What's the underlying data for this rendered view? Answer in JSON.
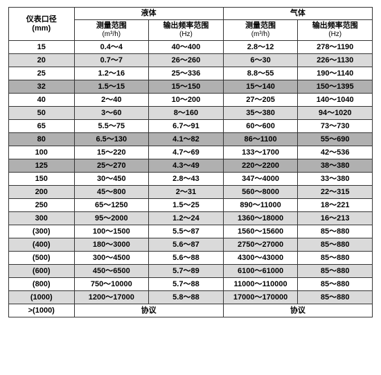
{
  "header": {
    "col0_l1": "仪表口径",
    "col0_l2": "(mm)",
    "grp1": "液体",
    "grp2": "气体",
    "sub1_l1": "测量范围",
    "sub1_l2": "(m³/h)",
    "sub2_l1": "输出频率范围",
    "sub2_l2": "(Hz)",
    "sub3_l1": "测量范围",
    "sub3_l2": "(m³/h)",
    "sub4_l1": "输出频率范围",
    "sub4_l2": "(Hz)"
  },
  "rows": [
    {
      "shade": "white",
      "c0": "15",
      "c1": "0.4～4",
      "c2": "40～400",
      "c3": "2.8～12",
      "c4": "278～1190"
    },
    {
      "shade": "light",
      "c0": "20",
      "c1": "0.7～7",
      "c2": "26～260",
      "c3": "6～30",
      "c4": "226～1130"
    },
    {
      "shade": "white",
      "c0": "25",
      "c1": "1.2～16",
      "c2": "25～336",
      "c3": "8.8～55",
      "c4": "190～1140"
    },
    {
      "shade": "dark",
      "c0": "32",
      "c1": "1.5～15",
      "c2": "15～150",
      "c3": "15～140",
      "c4": "150～1395"
    },
    {
      "shade": "white",
      "c0": "40",
      "c1": "2～40",
      "c2": "10～200",
      "c3": "27～205",
      "c4": "140～1040"
    },
    {
      "shade": "light",
      "c0": "50",
      "c1": "3～60",
      "c2": "8～160",
      "c3": "35～380",
      "c4": "94～1020"
    },
    {
      "shade": "white",
      "c0": "65",
      "c1": "5.5～75",
      "c2": "6.7～91",
      "c3": "60～600",
      "c4": "73～730"
    },
    {
      "shade": "dark",
      "c0": "80",
      "c1": "6.5～130",
      "c2": "4.1～82",
      "c3": "86～1100",
      "c4": "55～690"
    },
    {
      "shade": "white",
      "c0": "100",
      "c1": "15～220",
      "c2": "4.7～69",
      "c3": "133～1700",
      "c4": "42～536"
    },
    {
      "shade": "dark",
      "c0": "125",
      "c1": "25～270",
      "c2": "4.3～49",
      "c3": "220～2200",
      "c4": "38～380"
    },
    {
      "shade": "white",
      "c0": "150",
      "c1": "30～450",
      "c2": "2.8～43",
      "c3": "347～4000",
      "c4": "33～380"
    },
    {
      "shade": "light",
      "c0": "200",
      "c1": "45～800",
      "c2": "2～31",
      "c3": "560～8000",
      "c4": "22～315"
    },
    {
      "shade": "white",
      "c0": "250",
      "c1": "65～1250",
      "c2": "1.5～25",
      "c3": "890～11000",
      "c4": "18～221"
    },
    {
      "shade": "light",
      "c0": "300",
      "c1": "95～2000",
      "c2": "1.2～24",
      "c3": "1360～18000",
      "c4": "16～213"
    },
    {
      "shade": "white",
      "c0": "(300)",
      "c1": "100～1500",
      "c2": "5.5～87",
      "c3": "1560～15600",
      "c4": "85～880"
    },
    {
      "shade": "light",
      "c0": "(400)",
      "c1": "180～3000",
      "c2": "5.6～87",
      "c3": "2750～27000",
      "c4": "85～880"
    },
    {
      "shade": "white",
      "c0": "(500)",
      "c1": "300～4500",
      "c2": "5.6～88",
      "c3": "4300～43000",
      "c4": "85～880"
    },
    {
      "shade": "light",
      "c0": "(600)",
      "c1": "450～6500",
      "c2": "5.7～89",
      "c3": "6100～61000",
      "c4": "85～880"
    },
    {
      "shade": "white",
      "c0": "(800)",
      "c1": "750～10000",
      "c2": "5.7～88",
      "c3": "11000～110000",
      "c4": "85～880"
    },
    {
      "shade": "light",
      "c0": "(1000)",
      "c1": "1200～17000",
      "c2": "5.8～88",
      "c3": "17000～170000",
      "c4": "85～880"
    }
  ],
  "footer": {
    "c0": ">(1000)",
    "c12": "协议",
    "c34": "协议"
  }
}
